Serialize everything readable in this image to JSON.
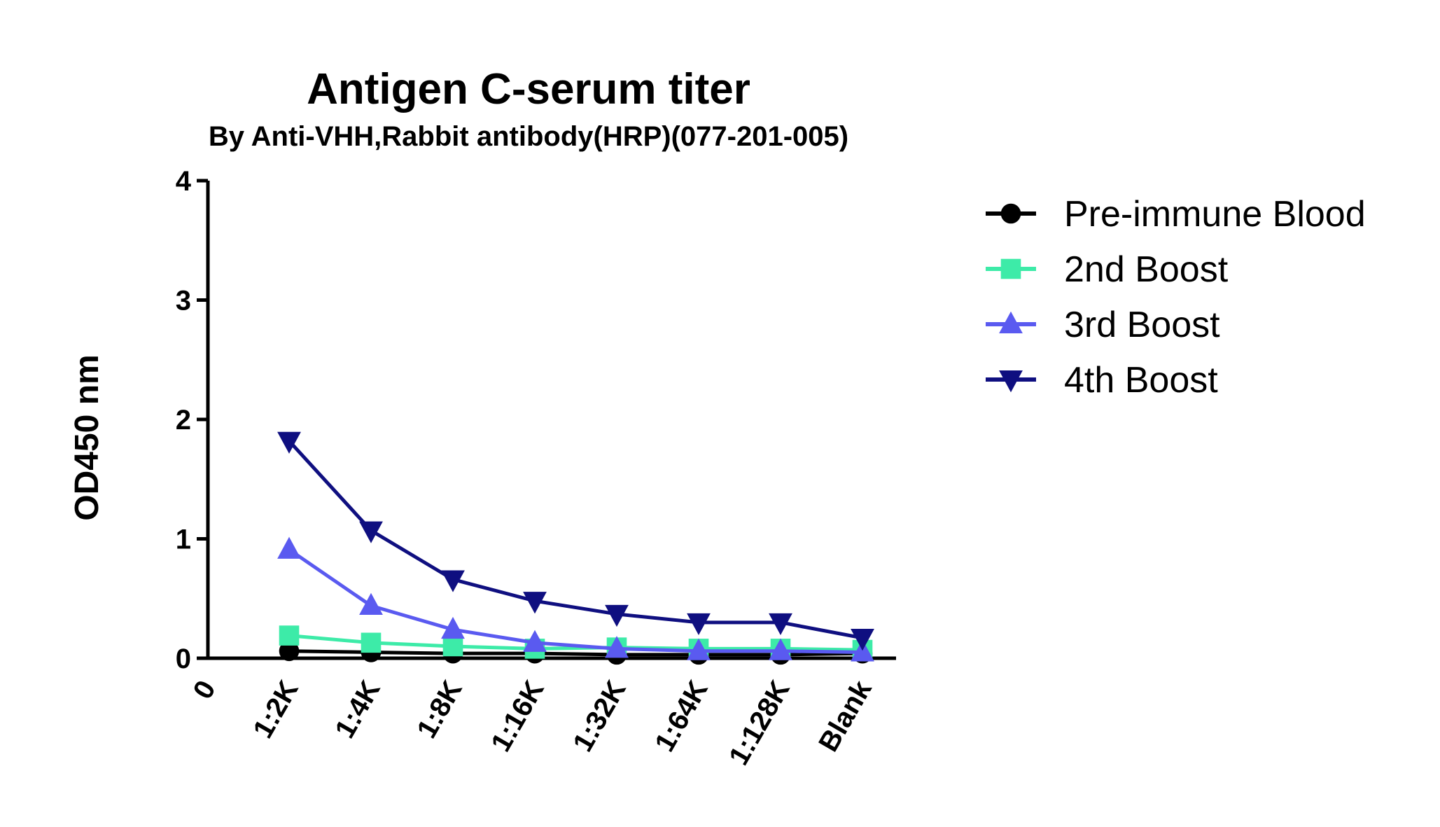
{
  "chart_data": {
    "type": "line",
    "title": "Antigen C-serum titer",
    "subtitle": "By Anti-VHH,Rabbit antibody(HRP)(077-201-005)",
    "ylabel": "OD450 nm",
    "xlabel": "",
    "x_origin_label": "0",
    "categories": [
      "1:2K",
      "1:4K",
      "1:8K",
      "1:16K",
      "1:32K",
      "1:64K",
      "1:128K",
      "Blank"
    ],
    "yticks": [
      "0",
      "1",
      "2",
      "3",
      "4"
    ],
    "ylim": [
      0,
      4
    ],
    "grid": false,
    "legend_position": "right",
    "series": [
      {
        "name": "Pre-immune Blood",
        "color": "#000000",
        "marker": "circle",
        "values": [
          0.06,
          0.05,
          0.04,
          0.04,
          0.03,
          0.03,
          0.03,
          0.04
        ]
      },
      {
        "name": "2nd Boost",
        "color": "#3DEBA8",
        "marker": "square",
        "values": [
          0.19,
          0.13,
          0.1,
          0.08,
          0.09,
          0.08,
          0.08,
          0.07
        ]
      },
      {
        "name": "3rd Boost",
        "color": "#5A5AF0",
        "marker": "triangle-up",
        "values": [
          0.91,
          0.44,
          0.24,
          0.13,
          0.08,
          0.06,
          0.06,
          0.05
        ]
      },
      {
        "name": "4th Boost",
        "color": "#0F0F80",
        "marker": "triangle-down",
        "values": [
          1.82,
          1.07,
          0.66,
          0.48,
          0.37,
          0.3,
          0.3,
          0.17
        ]
      }
    ]
  }
}
